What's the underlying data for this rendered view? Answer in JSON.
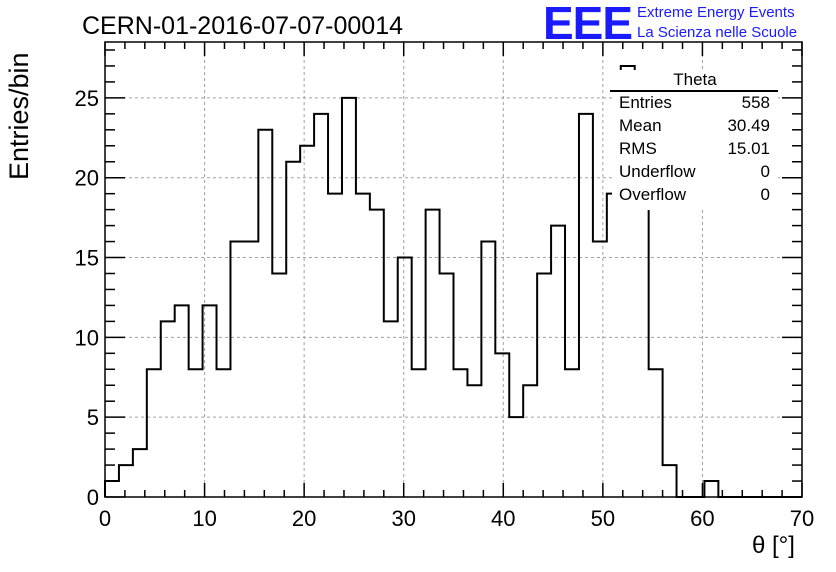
{
  "title": "CERN-01-2016-07-07-00014",
  "logo": {
    "mark": "EEE",
    "line1": "Extreme Energy Events",
    "line2": "La Scienza nelle Scuole",
    "color": "#1a1aff"
  },
  "stats_box": {
    "title": "Theta",
    "rows": [
      {
        "label": "Entries",
        "value": "558"
      },
      {
        "label": "Mean",
        "value": "30.49"
      },
      {
        "label": "RMS",
        "value": "15.01"
      },
      {
        "label": "Underflow",
        "value": "0"
      },
      {
        "label": "Overflow",
        "value": "0"
      }
    ]
  },
  "chart_data": {
    "type": "histogram",
    "title": "CERN-01-2016-07-07-00014",
    "xlabel": "θ [°]",
    "ylabel": "Entries/bin",
    "xlim": [
      0,
      70
    ],
    "ylim": [
      0,
      28.5
    ],
    "bin_width": 1.4,
    "x_ticks": [
      0,
      10,
      20,
      30,
      40,
      50,
      60,
      70
    ],
    "y_ticks": [
      0,
      5,
      10,
      15,
      20,
      25
    ],
    "grid": true,
    "bin_edges": [
      0,
      1.4,
      2.8,
      4.2,
      5.6,
      7.0,
      8.4,
      9.8,
      11.2,
      12.6,
      14.0,
      15.4,
      16.8,
      18.2,
      19.6,
      21.0,
      22.4,
      23.8,
      25.2,
      26.6,
      28.0,
      29.4,
      30.8,
      32.2,
      33.6,
      35.0,
      36.4,
      37.8,
      39.2,
      40.6,
      42.0,
      43.4,
      44.8,
      46.2,
      47.6,
      49.0,
      50.4,
      51.8,
      53.2,
      54.6,
      56.0,
      57.4,
      58.8,
      60.2,
      61.6,
      63.0,
      64.4,
      65.8,
      67.2,
      68.6,
      70.0
    ],
    "values": [
      1,
      2,
      3,
      8,
      11,
      12,
      8,
      12,
      8,
      16,
      16,
      23,
      14,
      21,
      22,
      24,
      19,
      25,
      19,
      18,
      11,
      15,
      8,
      18,
      14,
      8,
      7,
      16,
      9,
      5,
      7,
      14,
      17,
      8,
      24,
      16,
      19,
      27,
      22,
      8,
      2,
      0,
      0,
      1,
      0,
      0,
      0,
      0,
      0,
      0
    ],
    "line_color": "#000000"
  }
}
